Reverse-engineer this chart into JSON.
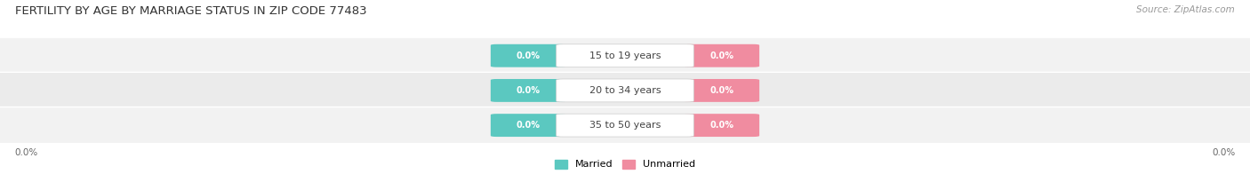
{
  "title": "FERTILITY BY AGE BY MARRIAGE STATUS IN ZIP CODE 77483",
  "source": "Source: ZipAtlas.com",
  "categories": [
    "15 to 19 years",
    "20 to 34 years",
    "35 to 50 years"
  ],
  "married_values": [
    0.0,
    0.0,
    0.0
  ],
  "unmarried_values": [
    0.0,
    0.0,
    0.0
  ],
  "married_color": "#5bc8c0",
  "unmarried_color": "#f08ca0",
  "row_bg_light": "#f2f2f2",
  "row_bg_dark": "#e9e9e9",
  "row_stripe_light": "#f7f7f7",
  "label_color": "#ffffff",
  "category_label_color": "#444444",
  "axis_label": "0.0%",
  "fig_bg_color": "#ffffff",
  "legend_married": "Married",
  "legend_unmarried": "Unmarried",
  "title_fontsize": 9.5,
  "source_fontsize": 7.5,
  "value_fontsize": 7.0,
  "cat_fontsize": 8.0,
  "legend_fontsize": 8.0,
  "axis_fontsize": 7.5
}
